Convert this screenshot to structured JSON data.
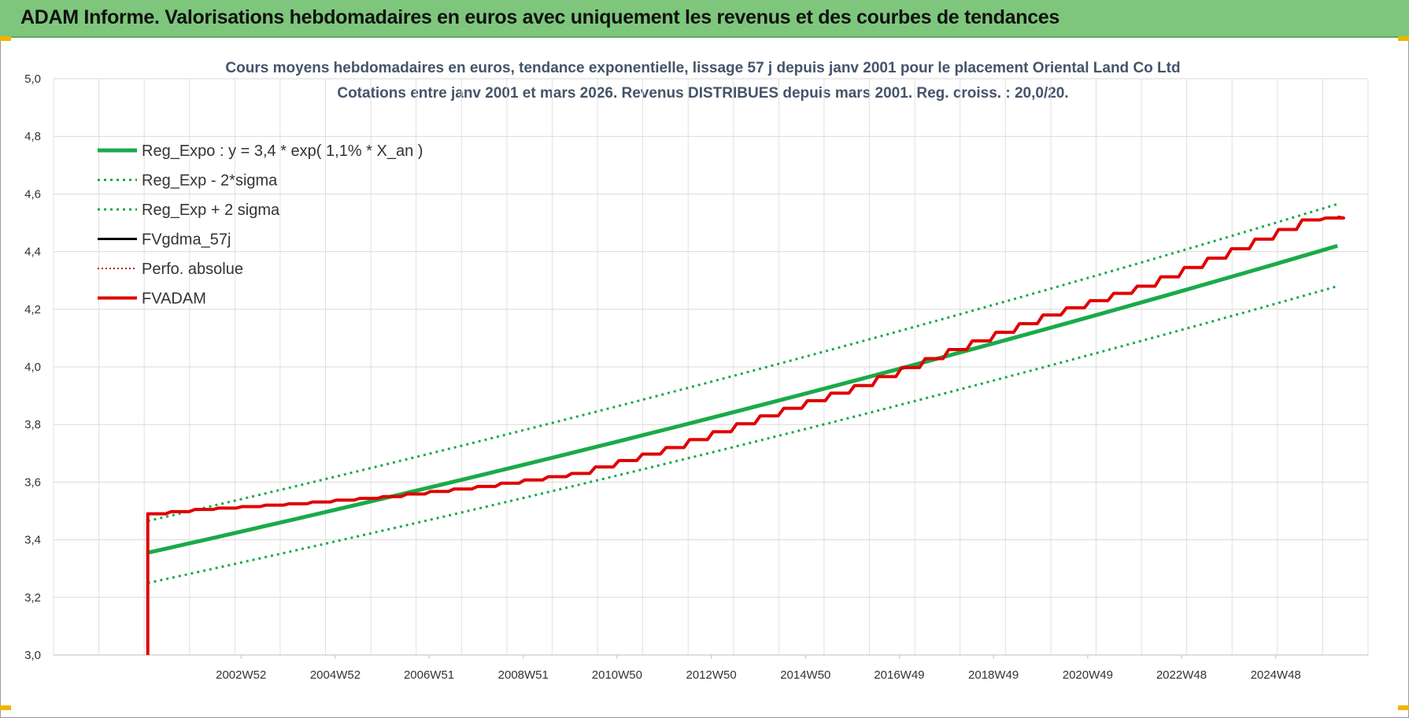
{
  "header": {
    "title": "ADAM Informe. Valorisations hebdomadaires en euros avec uniquement les revenus et des courbes de tendances"
  },
  "chart_data": {
    "type": "line",
    "title": "Cours moyens hebdomadaires en euros, tendance exponentielle, lissage 57 j depuis janv 2001 pour le placement Oriental Land Co Ltd",
    "subtitle": "Cotations entre janv 2001 et mars 2026. Revenus DISTRIBUES depuis mars 2001. Reg. croiss. : 20,0/20.",
    "xlabel": "",
    "ylabel": "",
    "x_range": [
      1999.0,
      2026.9
    ],
    "ylim": [
      3.0,
      5.0
    ],
    "y_ticks": [
      "3,0",
      "3,2",
      "3,4",
      "3,6",
      "3,8",
      "4,0",
      "4,2",
      "4,4",
      "4,6",
      "4,8",
      "5,0"
    ],
    "x_ticks": [
      {
        "x": 2002.98,
        "label": "2002W52"
      },
      {
        "x": 2004.98,
        "label": "2004W52"
      },
      {
        "x": 2006.97,
        "label": "2006W51"
      },
      {
        "x": 2008.97,
        "label": "2008W51"
      },
      {
        "x": 2010.96,
        "label": "2010W50"
      },
      {
        "x": 2012.96,
        "label": "2012W50"
      },
      {
        "x": 2014.96,
        "label": "2014W50"
      },
      {
        "x": 2016.95,
        "label": "2016W49"
      },
      {
        "x": 2018.95,
        "label": "2018W49"
      },
      {
        "x": 2020.95,
        "label": "2020W49"
      },
      {
        "x": 2022.94,
        "label": "2022W48"
      },
      {
        "x": 2024.94,
        "label": "2024W48"
      }
    ],
    "grid": true,
    "legend_position": "top-left",
    "series": [
      {
        "name": "Reg_Expo : y = 3,4 * exp( 1,1% *  X_an )",
        "color": "#1aaa4a",
        "style": "solid",
        "points": [
          [
            2001.0,
            3.355
          ],
          [
            2026.25,
            4.42
          ]
        ]
      },
      {
        "name": "Reg_Exp - 2*sigma",
        "color": "#1aaa4a",
        "style": "dotted",
        "points": [
          [
            2001.0,
            3.25
          ],
          [
            2026.25,
            4.28
          ]
        ]
      },
      {
        "name": "Reg_Exp + 2 sigma",
        "color": "#1aaa4a",
        "style": "dotted",
        "points": [
          [
            2001.0,
            3.465
          ],
          [
            2026.25,
            4.565
          ]
        ]
      },
      {
        "name": "FVgdma_57j",
        "color": "#000000",
        "style": "solid",
        "points": [
          [
            2001.0,
            3.49
          ],
          [
            2002,
            3.505
          ],
          [
            2004,
            3.525
          ],
          [
            2006,
            3.55
          ],
          [
            2008,
            3.585
          ],
          [
            2010,
            3.63
          ],
          [
            2012,
            3.72
          ],
          [
            2014,
            3.83
          ],
          [
            2016,
            3.935
          ],
          [
            2018,
            4.06
          ],
          [
            2020,
            4.18
          ],
          [
            2022,
            4.28
          ],
          [
            2024,
            4.41
          ],
          [
            2025.5,
            4.51
          ],
          [
            2026.25,
            4.52
          ]
        ]
      },
      {
        "name": "Perfo. absolue",
        "color": "#c00000",
        "style": "dotted",
        "points": [
          [
            2001.0,
            3.49
          ],
          [
            2002,
            3.505
          ],
          [
            2004,
            3.525
          ],
          [
            2006,
            3.55
          ],
          [
            2008,
            3.585
          ],
          [
            2010,
            3.63
          ],
          [
            2012,
            3.72
          ],
          [
            2014,
            3.83
          ],
          [
            2016,
            3.935
          ],
          [
            2018,
            4.06
          ],
          [
            2020,
            4.18
          ],
          [
            2022,
            4.28
          ],
          [
            2024,
            4.41
          ],
          [
            2025.5,
            4.51
          ],
          [
            2026.25,
            4.52
          ]
        ]
      },
      {
        "name": "FVADAM",
        "color": "#e00000",
        "style": "solid",
        "points": [
          [
            2001.0,
            3.0
          ],
          [
            2001.0,
            3.49
          ],
          [
            2002,
            3.505
          ],
          [
            2004,
            3.525
          ],
          [
            2006,
            3.55
          ],
          [
            2008,
            3.585
          ],
          [
            2010,
            3.63
          ],
          [
            2012,
            3.72
          ],
          [
            2014,
            3.83
          ],
          [
            2016,
            3.935
          ],
          [
            2018,
            4.06
          ],
          [
            2020,
            4.18
          ],
          [
            2022,
            4.28
          ],
          [
            2024,
            4.41
          ],
          [
            2025.5,
            4.51
          ],
          [
            2026.25,
            4.52
          ]
        ]
      }
    ]
  }
}
